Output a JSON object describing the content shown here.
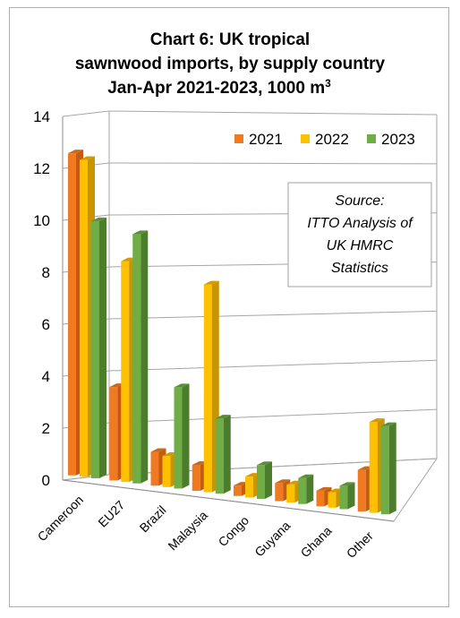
{
  "chart_data": {
    "type": "bar",
    "title_lines": [
      "Chart 6: UK tropical",
      "sawnwood imports, by supply country"
    ],
    "title_line3_text": "Jan-Apr 2021-2023, 1000 m",
    "title_line3_sup": "3",
    "categories": [
      "Cameroon",
      "EU27",
      "Brazil",
      "Malaysia",
      "Congo",
      "Guyana",
      "Ghana",
      "Other"
    ],
    "series": [
      {
        "name": "2021",
        "values": [
          12.4,
          3.6,
          1.3,
          1.0,
          0.4,
          0.7,
          0.6,
          1.6
        ]
      },
      {
        "name": "2022",
        "values": [
          12.2,
          8.5,
          1.2,
          8.0,
          0.8,
          0.7,
          0.6,
          3.5
        ]
      },
      {
        "name": "2023",
        "values": [
          9.9,
          9.6,
          3.9,
          2.9,
          1.3,
          1.0,
          0.9,
          3.4
        ]
      }
    ],
    "ylim": [
      0,
      14
    ],
    "yticks": [
      "0",
      "2",
      "4",
      "6",
      "8",
      "10",
      "12",
      "14"
    ],
    "grid": true,
    "legend_position": "top-right",
    "colors": {
      "2021": {
        "front": "#f07a22",
        "side": "#c55a10",
        "top": "#c96a1a"
      },
      "2022": {
        "front": "#ffc000",
        "side": "#c89400",
        "top": "#d49a00"
      },
      "2023": {
        "front": "#70ad47",
        "side": "#4b7d2c",
        "top": "#5a8f38"
      }
    },
    "annotation": {
      "lines": [
        "Source:",
        "ITTO Analysis of",
        "UK HMRC",
        "Statistics"
      ]
    }
  }
}
